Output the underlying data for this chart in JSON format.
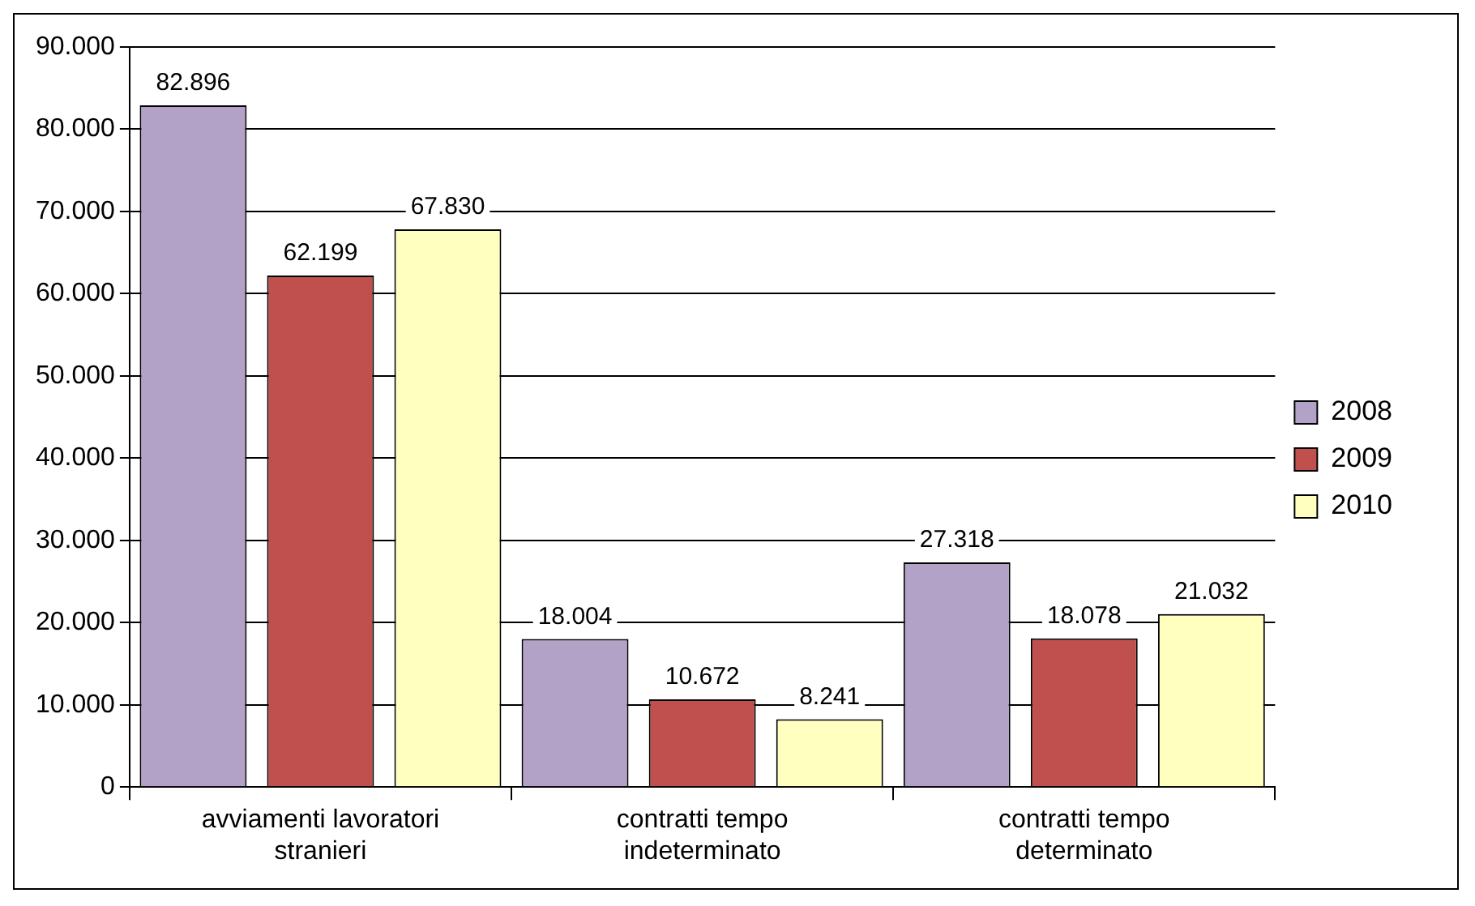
{
  "chart_data": {
    "type": "bar",
    "categories": [
      "avviamenti lavoratori stranieri",
      "contratti tempo indeterminato",
      "contratti tempo determinato"
    ],
    "series": [
      {
        "name": "2008",
        "color": "#b3a2c7",
        "values": [
          82896,
          18004,
          27318
        ],
        "value_labels": [
          "82.896",
          "18.004",
          "27.318"
        ]
      },
      {
        "name": "2009",
        "color": "#c0504d",
        "values": [
          62199,
          10672,
          18078
        ],
        "value_labels": [
          "62.199",
          "10.672",
          "18.078"
        ]
      },
      {
        "name": "2010",
        "color": "#ffffc0",
        "values": [
          67830,
          8241,
          21032
        ],
        "value_labels": [
          "67.830",
          "8.241",
          "21.032"
        ]
      }
    ],
    "ylim": [
      0,
      90000
    ],
    "yticks": [
      {
        "value": 0,
        "label": "0"
      },
      {
        "value": 10000,
        "label": "10.000"
      },
      {
        "value": 20000,
        "label": "20.000"
      },
      {
        "value": 30000,
        "label": "30.000"
      },
      {
        "value": 40000,
        "label": "40.000"
      },
      {
        "value": 50000,
        "label": "50.000"
      },
      {
        "value": 60000,
        "label": "60.000"
      },
      {
        "value": 70000,
        "label": "70.000"
      },
      {
        "value": 80000,
        "label": "80.000"
      },
      {
        "value": 90000,
        "label": "90.000"
      }
    ],
    "grid": "y",
    "legend": "right"
  }
}
